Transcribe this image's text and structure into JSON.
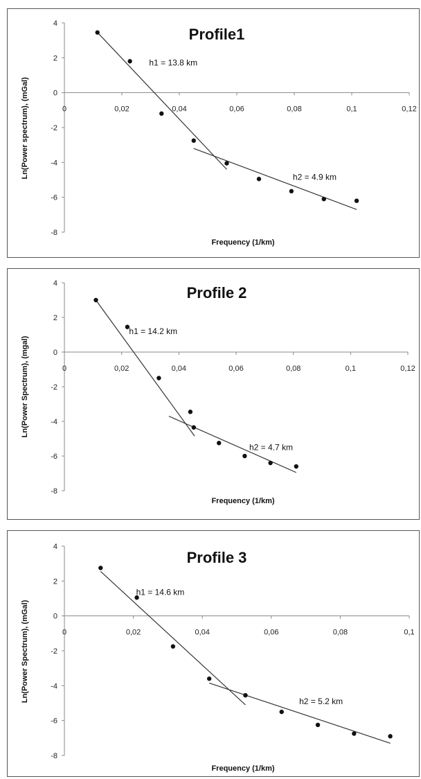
{
  "chart_data": [
    {
      "type": "scatter",
      "title": "Profile1",
      "xlabel": "Frequency (1/km)",
      "ylabel": "Ln(Power spectrum), (mGal)",
      "xlim": [
        0,
        0.12
      ],
      "ylim": [
        -8,
        4
      ],
      "xticks": [
        "0",
        "0,02",
        "0,04",
        "0,06",
        "0,08",
        "0,1",
        "0,12"
      ],
      "yticks": [
        "4",
        "2",
        "0",
        "-2",
        "-4",
        "-6",
        "-8"
      ],
      "points": [
        {
          "x": 0.0115,
          "y": 3.45
        },
        {
          "x": 0.0228,
          "y": 1.8
        },
        {
          "x": 0.0338,
          "y": -1.2
        },
        {
          "x": 0.045,
          "y": -2.75
        },
        {
          "x": 0.0565,
          "y": -4.05
        },
        {
          "x": 0.0677,
          "y": -4.95
        },
        {
          "x": 0.079,
          "y": -5.65
        },
        {
          "x": 0.0903,
          "y": -6.1
        },
        {
          "x": 0.1017,
          "y": -6.2
        }
      ],
      "fit_lines": [
        {
          "x1": 0.0115,
          "y1": 3.45,
          "x2": 0.0565,
          "y2": -4.4
        },
        {
          "x1": 0.045,
          "y1": -3.2,
          "x2": 0.1017,
          "y2": -6.7
        }
      ],
      "annotations": [
        {
          "text": "h1 = 13.8 km",
          "x": 0.0295,
          "y": 1.55
        },
        {
          "text": "h2 = 4.9 km",
          "x": 0.0795,
          "y": -5.0
        }
      ]
    },
    {
      "type": "scatter",
      "title": "Profile 2",
      "xlabel": "Frequency (1/km)",
      "ylabel": "Ln(Power Spectrum), (mgal)",
      "xlim": [
        0,
        0.12
      ],
      "ylim": [
        -8,
        4
      ],
      "xticks": [
        "0",
        "0,02",
        "0,04",
        "0,06",
        "0,08",
        "0,1",
        "0,12"
      ],
      "yticks": [
        "4",
        "2",
        "0",
        "-2",
        "-4",
        "-6",
        "-8"
      ],
      "points": [
        {
          "x": 0.011,
          "y": 3.0
        },
        {
          "x": 0.022,
          "y": 1.45
        },
        {
          "x": 0.033,
          "y": -1.5
        },
        {
          "x": 0.044,
          "y": -3.45
        },
        {
          "x": 0.0452,
          "y": -4.35
        },
        {
          "x": 0.054,
          "y": -5.25
        },
        {
          "x": 0.063,
          "y": -6.0
        },
        {
          "x": 0.072,
          "y": -6.4
        },
        {
          "x": 0.081,
          "y": -6.6
        }
      ],
      "fit_lines": [
        {
          "x1": 0.011,
          "y1": 3.0,
          "x2": 0.0455,
          "y2": -4.85
        },
        {
          "x1": 0.0365,
          "y1": -3.7,
          "x2": 0.081,
          "y2": -6.95
        }
      ],
      "annotations": [
        {
          "text": "h1 = 14.2 km",
          "x": 0.0226,
          "y": 1.05
        },
        {
          "text": "h2 = 4.7 km",
          "x": 0.0646,
          "y": -5.65
        }
      ]
    },
    {
      "type": "scatter",
      "title": "Profile 3",
      "xlabel": "Frequency (1/km)",
      "ylabel": "Ln(Power Spectrum), (mGal)",
      "xlim": [
        0,
        0.1
      ],
      "ylim": [
        -8,
        4
      ],
      "xticks": [
        "0",
        "0,02",
        "0,04",
        "0,06",
        "0,08",
        "0,1"
      ],
      "yticks": [
        "4",
        "2",
        "0",
        "-2",
        "-4",
        "-6",
        "-8"
      ],
      "points": [
        {
          "x": 0.0105,
          "y": 2.75
        },
        {
          "x": 0.021,
          "y": 1.05
        },
        {
          "x": 0.0315,
          "y": -1.75
        },
        {
          "x": 0.042,
          "y": -3.6
        },
        {
          "x": 0.0525,
          "y": -4.55
        },
        {
          "x": 0.063,
          "y": -5.5
        },
        {
          "x": 0.0735,
          "y": -6.25
        },
        {
          "x": 0.084,
          "y": -6.75
        },
        {
          "x": 0.0945,
          "y": -6.9
        }
      ],
      "fit_lines": [
        {
          "x1": 0.0105,
          "y1": 2.55,
          "x2": 0.0525,
          "y2": -5.1
        },
        {
          "x1": 0.042,
          "y1": -3.85,
          "x2": 0.0945,
          "y2": -7.3
        }
      ],
      "annotations": [
        {
          "text": "h1 = 14.6 km",
          "x": 0.0208,
          "y": 1.2
        },
        {
          "text": "h2 = 5.2 km",
          "x": 0.0681,
          "y": -5.05
        }
      ]
    }
  ]
}
